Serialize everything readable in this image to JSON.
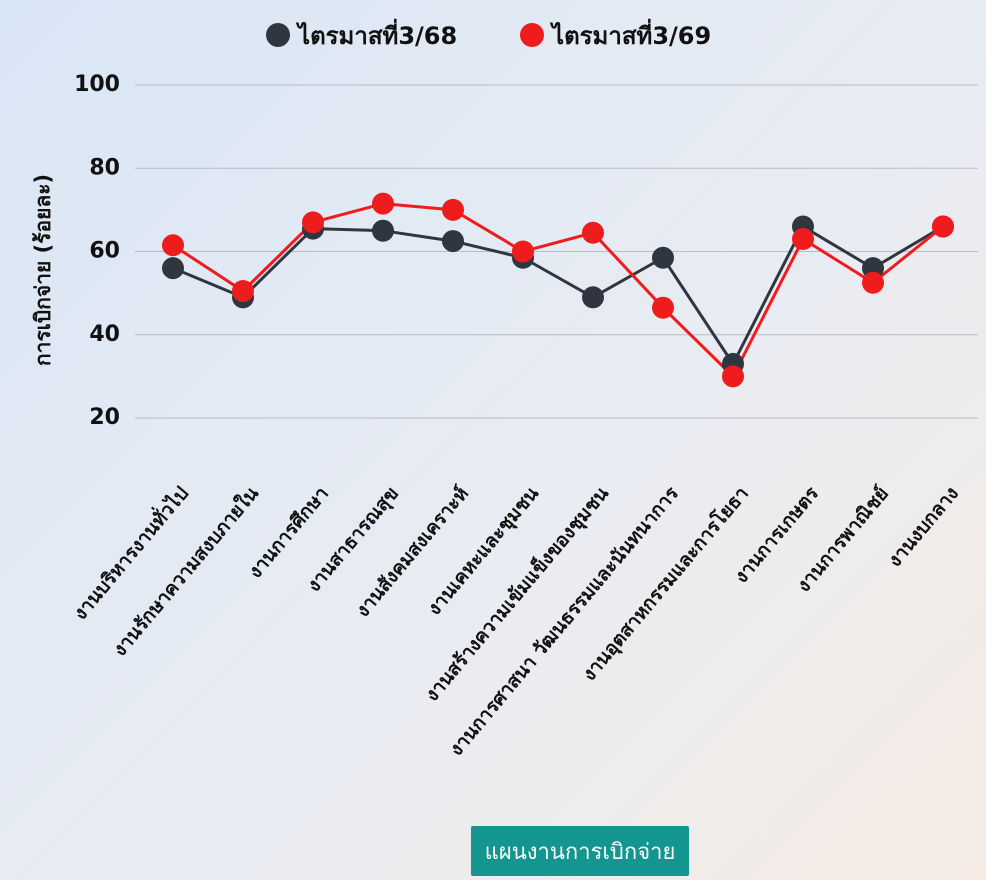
{
  "chart_data": {
    "type": "line",
    "y_label": "การเบิกจ่าย (ร้อยละ)",
    "categories": [
      "งานบริหารงานทั่วไป",
      "งานรักษาความสงบภายใน",
      "งานการศึกษา",
      "งานสาธารณสุข",
      "งานสังคมสงเคราะห์",
      "งานเคหะและชุมชน",
      "งานสร้างความเข้มแข็งของชุมชน",
      "งานการศาสนา วัฒนธรรมและนันทนาการ",
      "งานอุตสาหกรรมและการโยธา",
      "งานการเกษตร",
      "งานการพาณิชย์",
      "งานงบกลาง"
    ],
    "series": [
      {
        "name": "ไตรมาสที่3/68",
        "color": "#2f3640",
        "values": [
          56,
          49,
          65.5,
          65,
          62.5,
          58.5,
          49,
          58.5,
          33,
          66,
          56,
          66
        ]
      },
      {
        "name": "ไตรมาสที่3/69",
        "color": "#ee1c1c",
        "values": [
          61.5,
          50.5,
          67,
          71.5,
          70,
          60,
          64.5,
          46.5,
          30,
          63,
          52.5,
          66
        ]
      }
    ],
    "ylim": [
      20,
      100
    ],
    "yticks": [
      20,
      40,
      60,
      80,
      100
    ],
    "grid": true,
    "legend": "top"
  },
  "footer_button": "แผนงานการเบิกจ่าย"
}
